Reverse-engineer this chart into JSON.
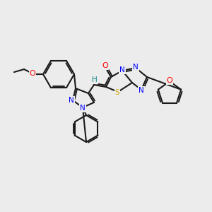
{
  "bg": "#ececec",
  "C": "#1a1a1a",
  "N": "#0000ff",
  "O": "#ff0000",
  "S": "#ccaa00",
  "H_color": "#008080",
  "lw": 1.5,
  "fs": 7.5
}
